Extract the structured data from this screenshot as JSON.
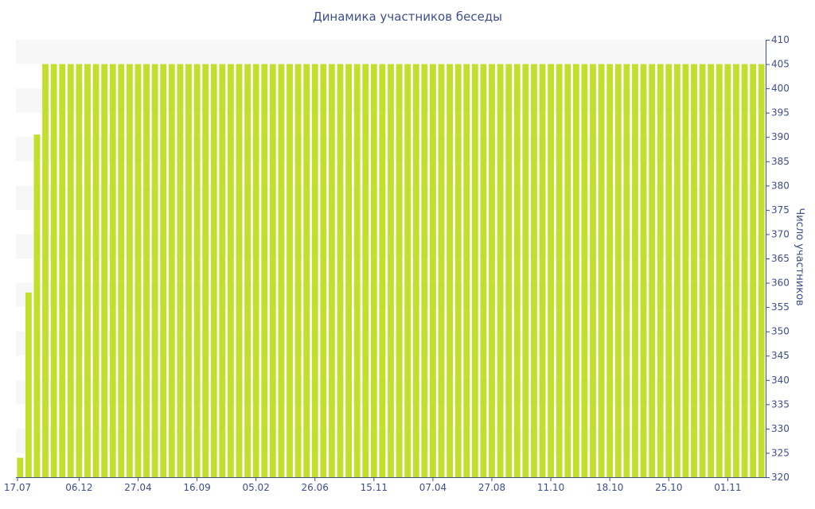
{
  "chart_data": {
    "type": "bar",
    "title": "Динамика участников беседы",
    "xlabel": "",
    "ylabel": "Число участников",
    "ylim": [
      320,
      410
    ],
    "y_ticks": [
      320,
      325,
      330,
      335,
      340,
      345,
      350,
      355,
      360,
      365,
      370,
      375,
      380,
      385,
      390,
      395,
      400,
      405,
      410
    ],
    "y_axis_side": "right",
    "x_tick_labels": [
      "17.07",
      "06.12",
      "27.04",
      "16.09",
      "05.02",
      "26.06",
      "15.11",
      "07.04",
      "27.08",
      "11.10",
      "18.10",
      "25.10",
      "01.11"
    ],
    "x_tick_positions": [
      0,
      7,
      14,
      21,
      28,
      35,
      42,
      49,
      56,
      63,
      70,
      77,
      84
    ],
    "grid": "alternating horizontal bands",
    "bar_color": "#c2df2e",
    "series": [
      {
        "values": [
          324,
          358,
          390.5,
          405,
          405,
          405,
          405,
          405,
          405,
          405,
          405,
          405,
          405,
          405,
          405,
          405,
          405,
          405,
          405,
          405,
          405,
          405,
          405,
          405,
          405,
          405,
          405,
          405,
          405,
          405,
          405,
          405,
          405,
          405,
          405,
          405,
          405,
          405,
          405,
          405,
          405,
          405,
          405,
          405,
          405,
          405,
          405,
          405,
          405,
          405,
          405,
          405,
          405,
          405,
          405,
          405,
          405,
          405,
          405,
          405,
          405,
          405,
          405,
          405,
          405,
          405,
          405,
          405,
          405,
          405,
          405,
          405,
          405,
          405,
          405,
          405,
          405,
          405,
          405,
          405,
          405,
          405,
          405,
          405,
          405,
          405,
          405,
          405,
          405
        ]
      }
    ]
  },
  "colors": {
    "text": "#3d4f8c",
    "band": "#f7f7f7",
    "bar": "#c2df2e"
  }
}
